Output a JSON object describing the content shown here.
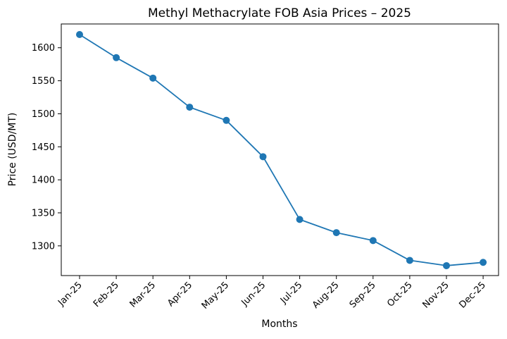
{
  "chart_data": {
    "type": "line",
    "title": "Methyl Methacrylate FOB Asia Prices – 2025",
    "xlabel": "Months",
    "ylabel": "Price (USD/MT)",
    "categories": [
      "Jan-25",
      "Feb-25",
      "Mar-25",
      "Apr-25",
      "May-25",
      "Jun-25",
      "Jul-25",
      "Aug-25",
      "Sep-25",
      "Oct-25",
      "Nov-25",
      "Dec-25"
    ],
    "series": [
      {
        "values": [
          1620,
          1585,
          1554,
          1510,
          1490,
          1435,
          1340,
          1320,
          1308,
          1278,
          1270,
          1275
        ],
        "color": "#1f77b4",
        "marker": "circle"
      }
    ],
    "ylim": [
      1255,
      1636
    ],
    "yticks": [
      1300,
      1350,
      1400,
      1450,
      1500,
      1550,
      1600
    ],
    "grid": false,
    "legend": "none"
  }
}
